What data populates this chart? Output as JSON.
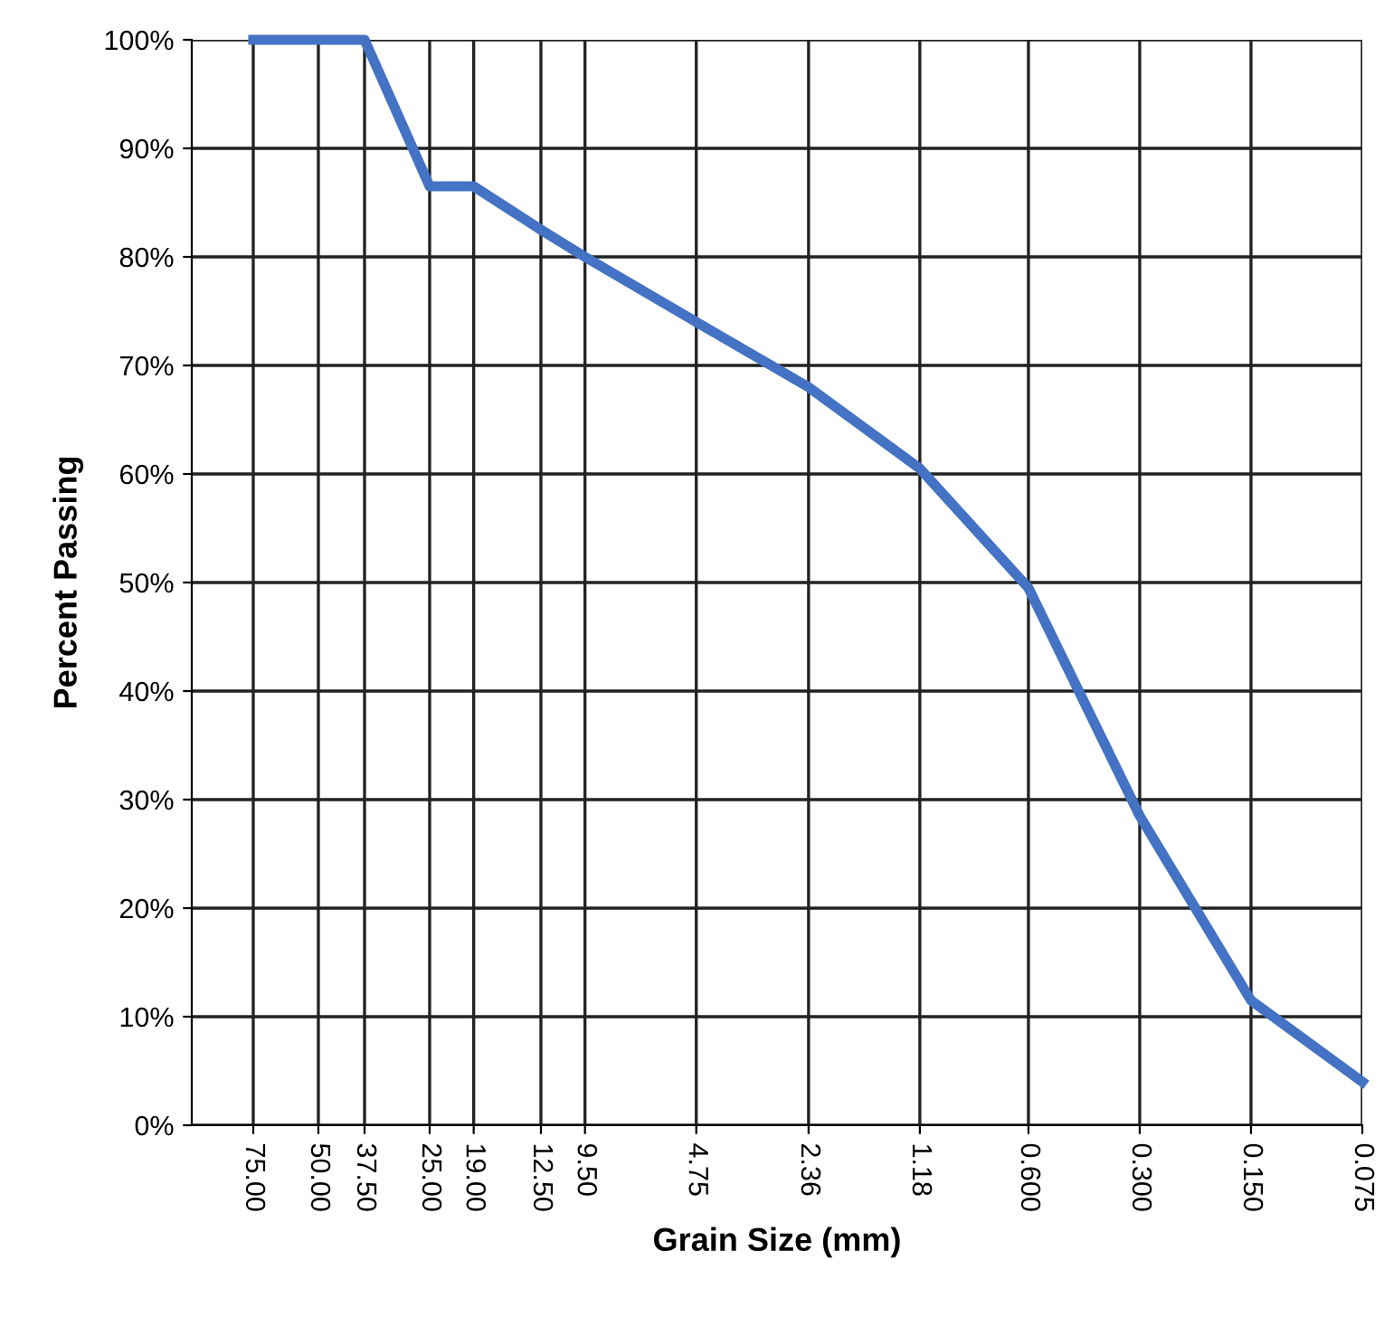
{
  "chart_data": {
    "type": "line",
    "xlabel": "Grain Size (mm)",
    "ylabel": "Percent Passing",
    "log": "x",
    "x": [
      75,
      50,
      37.5,
      25,
      19,
      12.5,
      9.5,
      4.75,
      2.36,
      1.18,
      0.6,
      0.3,
      0.15,
      0.075
    ],
    "series": [
      {
        "color": "#4472c4",
        "values": [
          100,
          100,
          100,
          86.5,
          86.5,
          82.5,
          80,
          74,
          68,
          60.5,
          49.5,
          28.5,
          11.5,
          4
        ]
      }
    ],
    "xlim": [
      110,
      0.075
    ],
    "xticks": [
      {
        "value": 75,
        "label": "75.00"
      },
      {
        "value": 50,
        "label": "50.00"
      },
      {
        "value": 37.5,
        "label": "37.50"
      },
      {
        "value": 25,
        "label": "25.00"
      },
      {
        "value": 19,
        "label": "19.00"
      },
      {
        "value": 12.5,
        "label": "12.50"
      },
      {
        "value": 9.5,
        "label": "9.50"
      },
      {
        "value": 4.75,
        "label": "4.75"
      },
      {
        "value": 2.36,
        "label": "2.36"
      },
      {
        "value": 1.18,
        "label": "1.18"
      },
      {
        "value": 0.6,
        "label": "0.600"
      },
      {
        "value": 0.3,
        "label": "0.300"
      },
      {
        "value": 0.15,
        "label": "0.150"
      },
      {
        "value": 0.075,
        "label": "0.075"
      }
    ],
    "ylim": [
      0,
      100
    ],
    "yticks": [
      {
        "value": 0,
        "label": "0%"
      },
      {
        "value": 10,
        "label": "10%"
      },
      {
        "value": 20,
        "label": "20%"
      },
      {
        "value": 30,
        "label": "30%"
      },
      {
        "value": 40,
        "label": "40%"
      },
      {
        "value": 50,
        "label": "50%"
      },
      {
        "value": 60,
        "label": "60%"
      },
      {
        "value": 70,
        "label": "70%"
      },
      {
        "value": 80,
        "label": "80%"
      },
      {
        "value": 90,
        "label": "90%"
      },
      {
        "value": 100,
        "label": "100%"
      }
    ],
    "grid": true,
    "marker": "none",
    "line_style": "solid"
  }
}
